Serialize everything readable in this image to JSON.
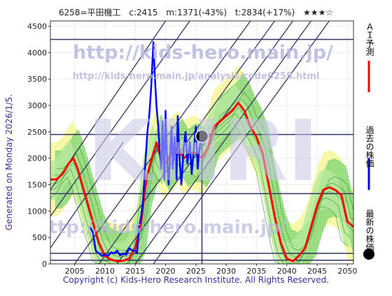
{
  "header": {
    "code_name": "6258=平田機工",
    "close": "c:2415",
    "min": "m:1371(-43%)",
    "target": "t:2834(+17%)",
    "stars": "★★★☆"
  },
  "side_text": "Generated on Monday 2026/1/5.",
  "footer": "Copyright (c) Kids-Hero Research Institute. All Rights Reserved.",
  "watermarks": {
    "url_main": "http://kids-hero.main.jp/",
    "url_analysis": "http://kids-hero.main.jp/analysis/code6258.html",
    "logo": "KHRI",
    "url_bottom": "http://kids-hero.main.jp/"
  },
  "legend": [
    {
      "label": "ＡＩ予測",
      "color": "#ff0000"
    },
    {
      "label": "過去の株価",
      "color": "#0000ff"
    },
    {
      "label": "最新の株価",
      "color": "#000000"
    }
  ],
  "chart_data": {
    "type": "line",
    "xlim": [
      2001,
      2051
    ],
    "ylim": [
      0,
      4600
    ],
    "x_ticks": [
      2005,
      2010,
      2015,
      2020,
      2025,
      2030,
      2035,
      2040,
      2045,
      2050
    ],
    "y_ticks": [
      0,
      500,
      1000,
      1500,
      2000,
      2500,
      3000,
      3500,
      4000,
      4500
    ],
    "horizontal_levels": [
      4250,
      2450,
      1330,
      200,
      70
    ],
    "latest": {
      "x": 2026.0,
      "y": 2415
    },
    "series": [
      {
        "name": "過去の株価",
        "color": "#0000ff",
        "x": [
          2007.5,
          2008,
          2008.5,
          2009,
          2009.5,
          2010,
          2010.5,
          2011,
          2011.5,
          2012,
          2012.5,
          2013,
          2013.5,
          2014,
          2014.5,
          2015,
          2015.3,
          2015.6,
          2016,
          2016.3,
          2016.6,
          2017,
          2017.3,
          2017.6,
          2018,
          2018.2,
          2018.5,
          2018.8,
          2019,
          2019.3,
          2019.5,
          2019.8,
          2020,
          2020.2,
          2020.5,
          2020.8,
          2021,
          2021.2,
          2021.5,
          2021.8,
          2022,
          2022.3,
          2022.6,
          2023,
          2023.3,
          2023.6,
          2024,
          2024.3,
          2024.6,
          2025,
          2025.3,
          2025.6,
          2026
        ],
        "y": [
          700,
          600,
          250,
          200,
          150,
          180,
          150,
          220,
          200,
          250,
          160,
          200,
          170,
          300,
          250,
          250,
          200,
          700,
          900,
          1200,
          1800,
          2500,
          2800,
          3300,
          4200,
          3600,
          3000,
          2600,
          2200,
          1800,
          2700,
          1600,
          2900,
          2100,
          1500,
          2200,
          2600,
          1800,
          2400,
          1600,
          2800,
          2000,
          1500,
          2200,
          2500,
          1900,
          2300,
          1700,
          2100,
          2600,
          1800,
          2200,
          2415
        ]
      },
      {
        "name": "ＡＩ予測",
        "color": "#ff0000",
        "x": [
          2001,
          2002,
          2003,
          2004,
          2004.8,
          2005.5,
          2006,
          2007,
          2008,
          2009,
          2010,
          2011,
          2012,
          2013,
          2014,
          2015,
          2016,
          2016.5,
          2017,
          2018,
          2018.5,
          2019,
          2020,
          2021,
          2022,
          2023,
          2024,
          2025,
          2026,
          2027,
          2028,
          2029,
          2030,
          2031,
          2032,
          2033,
          2034,
          2035,
          2036,
          2037,
          2038,
          2039,
          2040,
          2041,
          2042,
          2043,
          2044,
          2045,
          2046,
          2047,
          2048,
          2049,
          2050,
          2051
        ],
        "y": [
          1600,
          1600,
          1700,
          1900,
          2000,
          1800,
          1600,
          1200,
          800,
          400,
          150,
          80,
          50,
          60,
          100,
          300,
          800,
          1300,
          1700,
          2100,
          2300,
          2100,
          1900,
          2100,
          2200,
          2000,
          2100,
          2100,
          2000,
          2200,
          2600,
          2700,
          2800,
          2900,
          3050,
          2900,
          2600,
          2400,
          2100,
          1500,
          900,
          400,
          100,
          50,
          150,
          300,
          700,
          1100,
          1400,
          1450,
          1400,
          1300,
          800,
          700
        ]
      }
    ]
  }
}
